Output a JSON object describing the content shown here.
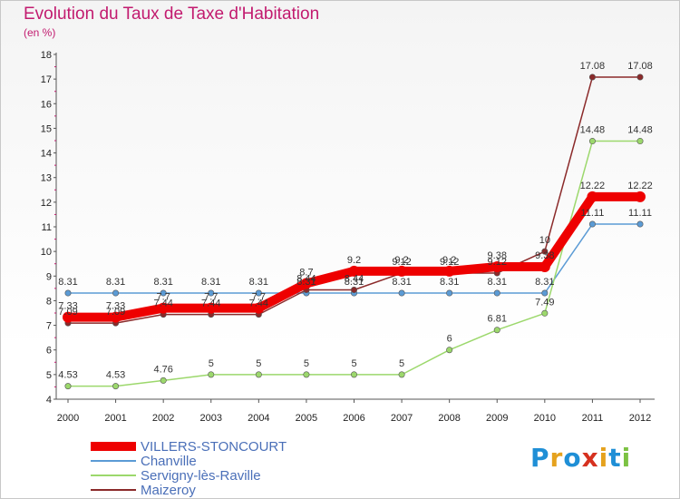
{
  "title": "Evolution du Taux de Taxe d'Habitation",
  "subtitle": "(en %)",
  "logo": {
    "letters": [
      "P",
      "r",
      "o",
      "x",
      "i",
      "t",
      "i"
    ],
    "colors": [
      "#1f8fd6",
      "#e5a21e",
      "#1f8fd6",
      "#d6311f",
      "#e5a21e",
      "#1f8fd6",
      "#7cc243"
    ]
  },
  "chart_data": {
    "type": "line",
    "categories": [
      "2000",
      "2001",
      "2002",
      "2003",
      "2004",
      "2005",
      "2006",
      "2007",
      "2008",
      "2009",
      "2010",
      "2011",
      "2012"
    ],
    "ylim": [
      4,
      18
    ],
    "yticks": [
      "4",
      "5",
      "6",
      "7",
      "8",
      "9",
      "10",
      "11",
      "12",
      "13",
      "14",
      "15",
      "16",
      "17",
      "18"
    ],
    "grid": false,
    "legend_position": "bottom-left",
    "series": [
      {
        "name": "VILLERS-STONCOURT",
        "color": "#ee0000",
        "emphasis": true,
        "values": [
          7.33,
          7.33,
          7.7,
          7.7,
          7.7,
          8.7,
          9.2,
          9.2,
          9.2,
          9.38,
          9.38,
          12.22,
          12.22
        ],
        "labels": [
          "7.33",
          "7.33",
          "7.7",
          "7.7",
          "7.7",
          "8.7",
          "9.2",
          "9.2",
          "9.2",
          "9.38",
          "9.38",
          "12.22",
          "12.22"
        ]
      },
      {
        "name": "Chanville",
        "color": "#5b9bd5",
        "values": [
          8.31,
          8.31,
          8.31,
          8.31,
          8.31,
          8.31,
          8.31,
          8.31,
          8.31,
          8.31,
          8.31,
          11.11,
          11.11
        ],
        "labels": [
          "8.31",
          "8.31",
          "8.31",
          "8.31",
          "8.31",
          "8.31",
          "8.31",
          "8.31",
          "8.31",
          "8.31",
          "8.31",
          "11.11",
          "11.11"
        ]
      },
      {
        "name": "Servigny-lès-Raville",
        "color": "#9cd86c",
        "values": [
          4.53,
          4.53,
          4.76,
          5,
          5,
          5,
          5,
          5,
          6,
          6.81,
          7.49,
          14.48,
          14.48
        ],
        "labels": [
          "4.53",
          "4.53",
          "4.76",
          "5",
          "5",
          "5",
          "5",
          "5",
          "6",
          "6.81",
          "7.49",
          "14.48",
          "14.48"
        ]
      },
      {
        "name": "Maizeroy",
        "color": "#8b2a2a",
        "values": [
          7.09,
          7.09,
          7.44,
          7.44,
          7.44,
          8.44,
          8.44,
          9.12,
          9.12,
          9.12,
          10,
          17.08,
          17.08
        ],
        "labels": [
          "7.09",
          "7.09",
          "7.44",
          "7.44",
          "7.44",
          "8.44",
          "8.44",
          "9.12",
          "9.12",
          "9.12",
          "10",
          "17.08",
          "17.08"
        ]
      }
    ]
  }
}
